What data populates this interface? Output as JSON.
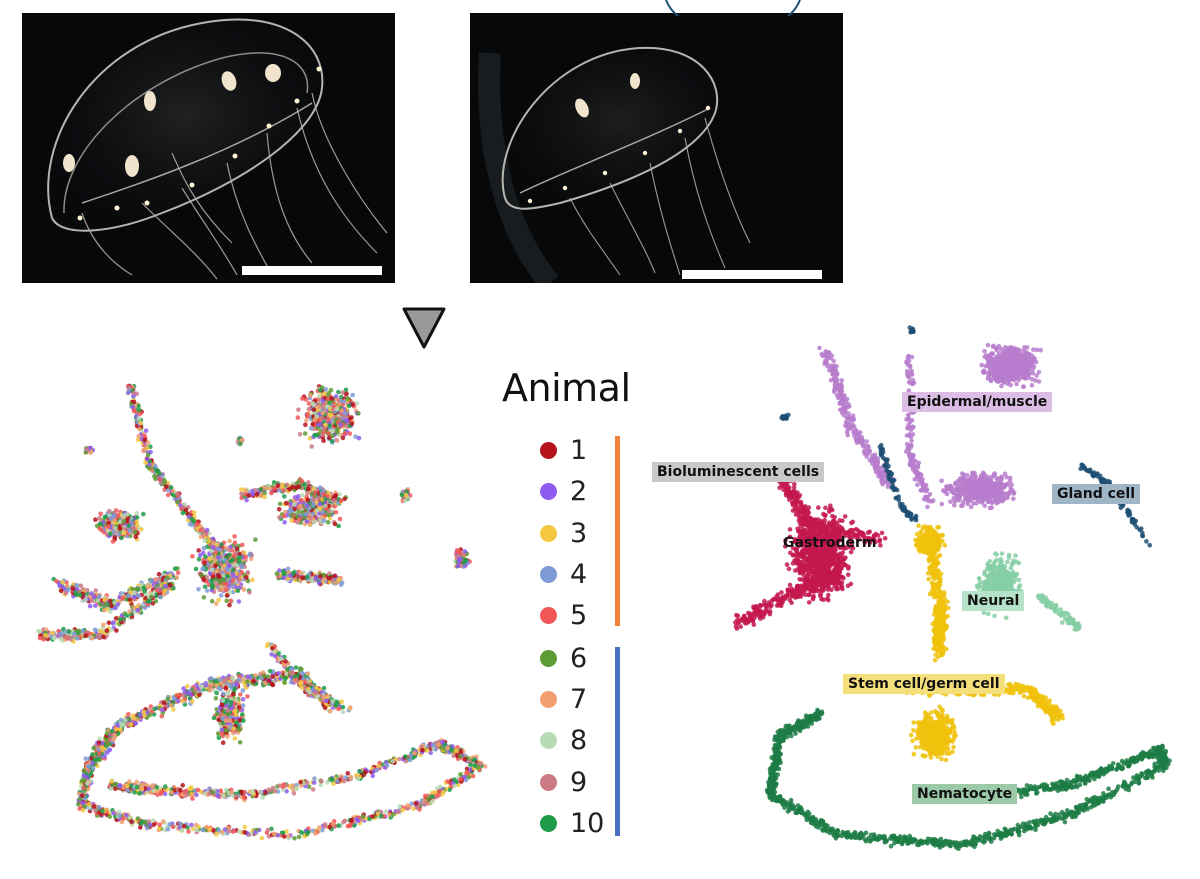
{
  "legend": {
    "title": "Animal",
    "items": [
      {
        "label": "1",
        "color": "#b5121b"
      },
      {
        "label": "2",
        "color": "#8e5cf0"
      },
      {
        "label": "3",
        "color": "#f5c842"
      },
      {
        "label": "4",
        "color": "#7f9bd6"
      },
      {
        "label": "5",
        "color": "#f25757"
      },
      {
        "label": "6",
        "color": "#5d9c35"
      },
      {
        "label": "7",
        "color": "#f0a070"
      },
      {
        "label": "8",
        "color": "#b7dbb7"
      },
      {
        "label": "9",
        "color": "#cc7a86"
      },
      {
        "label": "10",
        "color": "#1e9c4a"
      }
    ],
    "group_colors": {
      "group_a": "#f08236",
      "group_b": "#4a6fc4"
    }
  },
  "clusters": [
    {
      "key": "epidermal",
      "label": "Epidermal/muscle",
      "color": "#b77ccc",
      "box": "#dcbde6"
    },
    {
      "key": "biolum",
      "label": "Bioluminescent cells",
      "color": "#6b6b6b",
      "box": "#c9c9c9"
    },
    {
      "key": "gland",
      "label": "Gland cell",
      "color": "#1d4f73",
      "box": "#9fb6c7"
    },
    {
      "key": "gastro",
      "label": "Gastroderm",
      "color": "#c4184f",
      "box": "#c4184f"
    },
    {
      "key": "neural",
      "label": "Neural",
      "color": "#86cfa6",
      "box": "#b5e2c8"
    },
    {
      "key": "stem",
      "label": "Stem cell/germ cell",
      "color": "#f0c20c",
      "box": "#f5df7a"
    },
    {
      "key": "nemato",
      "label": "Nematocyte",
      "color": "#1d7c45",
      "box": "#9ccaa9"
    }
  ]
}
